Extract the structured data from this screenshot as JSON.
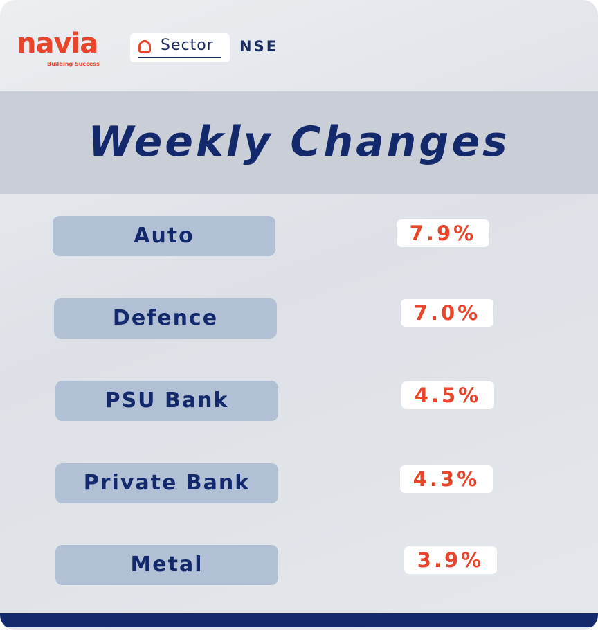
{
  "header": {
    "logo": "navia",
    "tagline": "Building Success",
    "tab": "Sector",
    "exchange": "NSE"
  },
  "title": "Weekly Changes",
  "rows": [
    {
      "sector": "Auto",
      "change": "7.9%"
    },
    {
      "sector": "Defence",
      "change": "7.0%"
    },
    {
      "sector": "PSU Bank",
      "change": "4.5%"
    },
    {
      "sector": "Private Bank",
      "change": "4.3%"
    },
    {
      "sector": "Metal",
      "change": "3.9%"
    }
  ]
}
